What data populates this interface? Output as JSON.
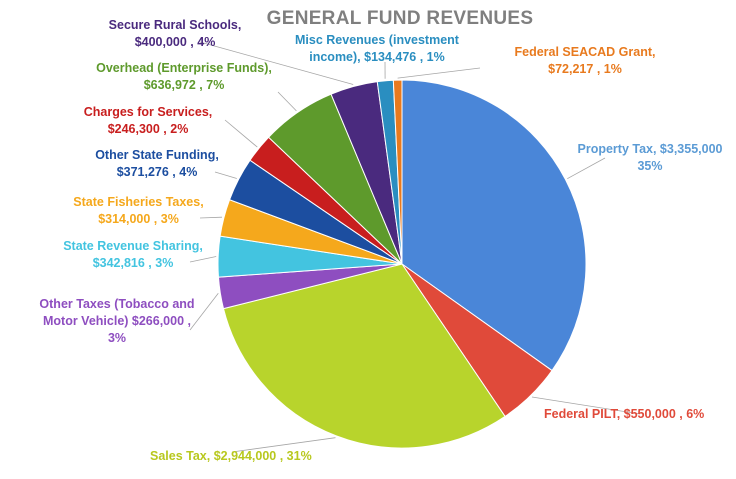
{
  "chart_data": {
    "type": "pie",
    "title": "GENERAL FUND REVENUES",
    "slices": [
      {
        "name": "Property Tax",
        "value": 3355000,
        "percent": "35%",
        "color": "#4a86d8",
        "label_lines": [
          "Property Tax,  $3,355,000",
          "35%"
        ]
      },
      {
        "name": "Federal PILT",
        "value": 550000,
        "percent": "6%",
        "color": "#e04a3a",
        "label_lines": [
          "Federal PILT,  $550,000 , 6%"
        ]
      },
      {
        "name": "Sales Tax",
        "value": 2944000,
        "percent": "31%",
        "color": "#b8d42c",
        "label_lines": [
          "Sales Tax,  $2,944,000 , 31%"
        ]
      },
      {
        "name": "Other Taxes (Tobacco and Motor Vehicle)",
        "value": 266000,
        "percent": "3%",
        "color": "#8e4ec0",
        "label_lines": [
          "Other Taxes (Tobacco and",
          "Motor Vehicle)  $266,000 ,",
          "3%"
        ]
      },
      {
        "name": "State Revenue Sharing",
        "value": 342816,
        "percent": "3%",
        "color": "#43c4e0",
        "label_lines": [
          "State Revenue Sharing,",
          "$342,816 , 3%"
        ]
      },
      {
        "name": "State Fisheries Taxes",
        "value": 314000,
        "percent": "3%",
        "color": "#f5a81c",
        "label_lines": [
          "State Fisheries Taxes,",
          "$314,000 , 3%"
        ]
      },
      {
        "name": "Other State Funding",
        "value": 371276,
        "percent": "4%",
        "color": "#1c4ea0",
        "label_lines": [
          "Other State Funding,",
          "$371,276 , 4%"
        ]
      },
      {
        "name": "Charges for Services",
        "value": 246300,
        "percent": "2%",
        "color": "#c81e1e",
        "label_lines": [
          "Charges for Services,",
          "$246,300 , 2%"
        ]
      },
      {
        "name": "Overhead (Enterprise Funds)",
        "value": 636972,
        "percent": "7%",
        "color": "#5e9a2c",
        "label_lines": [
          "Overhead (Enterprise Funds),",
          "$636,972 , 7%"
        ]
      },
      {
        "name": "Secure Rural Schools",
        "value": 400000,
        "percent": "4%",
        "color": "#4a2a7e",
        "label_lines": [
          "Secure Rural Schools,",
          "$400,000 , 4%"
        ]
      },
      {
        "name": "Misc Revenues (investment income)",
        "value": 134476,
        "percent": "1%",
        "color": "#2a8ec0",
        "label_lines": [
          "Misc Revenues (investment",
          "income),  $134,476 , 1%"
        ]
      },
      {
        "name": "Federal SEACAD Grant",
        "value": 72217,
        "percent": "1%",
        "color": "#e87a1e",
        "label_lines": [
          "Federal SEACAD Grant,",
          "$72,217 , 1%"
        ]
      }
    ],
    "start": "top",
    "direction": "clockwise",
    "legend": "none (labels outside slices)"
  }
}
